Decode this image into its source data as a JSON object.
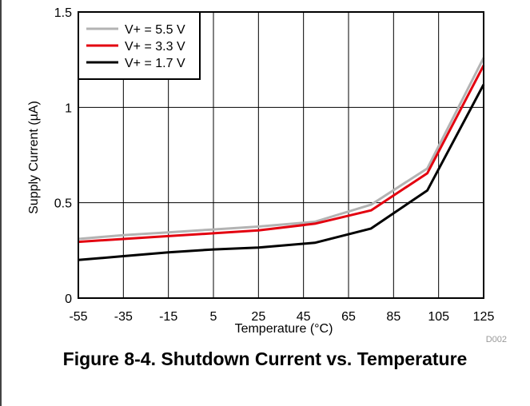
{
  "figure": {
    "caption": "Figure 8-4. Shutdown Current vs. Temperature",
    "tag": "D002"
  },
  "chart_data": {
    "type": "line",
    "xlabel": "Temperature (°C)",
    "ylabel": "Supply Current (µA)",
    "xlim": [
      -55,
      125
    ],
    "ylim": [
      0,
      1.5
    ],
    "xticks": [
      -55,
      -35,
      -15,
      5,
      25,
      45,
      65,
      85,
      105,
      125
    ],
    "xtick_labels": [
      "-55",
      "-35",
      "-15",
      "5",
      "25",
      "45",
      "65",
      "85",
      "105",
      "125"
    ],
    "yticks": [
      0,
      0.5,
      1,
      1.5
    ],
    "ytick_labels": [
      "0",
      "0.5",
      "1",
      "1.5"
    ],
    "grid": true,
    "legend_position": "top-left",
    "series": [
      {
        "name": "V+ = 5.5 V",
        "color": "#b3b3b3",
        "x": [
          -55,
          -35,
          -15,
          5,
          25,
          50,
          75,
          100,
          125
        ],
        "y": [
          0.31,
          0.33,
          0.345,
          0.36,
          0.375,
          0.4,
          0.49,
          0.68,
          1.26
        ]
      },
      {
        "name": "V+ = 3.3 V",
        "color": "#e3000f",
        "x": [
          -55,
          -35,
          -15,
          5,
          25,
          50,
          75,
          100,
          125
        ],
        "y": [
          0.295,
          0.31,
          0.325,
          0.34,
          0.355,
          0.39,
          0.46,
          0.655,
          1.22
        ]
      },
      {
        "name": "V+ = 1.7 V",
        "color": "#000000",
        "x": [
          -55,
          -35,
          -15,
          5,
          25,
          50,
          75,
          100,
          125
        ],
        "y": [
          0.2,
          0.22,
          0.24,
          0.255,
          0.265,
          0.29,
          0.365,
          0.565,
          1.12
        ]
      }
    ]
  }
}
